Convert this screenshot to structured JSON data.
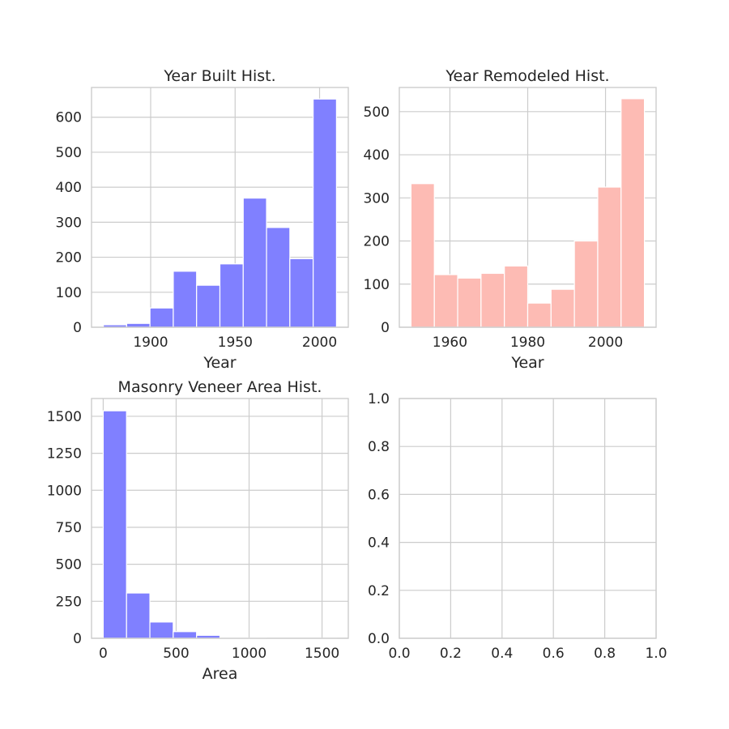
{
  "chart_data": [
    {
      "type": "bar",
      "title": "Year Built Hist.",
      "xlabel": "Year",
      "ylabel": "",
      "color": "#8080ff",
      "bins": [
        {
          "x0": 1872,
          "x1": 1885.8,
          "value": 7
        },
        {
          "x0": 1885.8,
          "x1": 1899.6,
          "value": 11
        },
        {
          "x0": 1899.6,
          "x1": 1913.4,
          "value": 55
        },
        {
          "x0": 1913.4,
          "x1": 1927.2,
          "value": 160
        },
        {
          "x0": 1927.2,
          "x1": 1941.0,
          "value": 120
        },
        {
          "x0": 1941.0,
          "x1": 1954.8,
          "value": 181
        },
        {
          "x0": 1954.8,
          "x1": 1968.6,
          "value": 369
        },
        {
          "x0": 1968.6,
          "x1": 1982.4,
          "value": 285
        },
        {
          "x0": 1982.4,
          "x1": 1996.2,
          "value": 196
        },
        {
          "x0": 1996.2,
          "x1": 2010,
          "value": 652
        }
      ],
      "xlim": [
        1865,
        2017
      ],
      "ylim": [
        0,
        685
      ],
      "xticks": [
        1900,
        1950,
        2000
      ],
      "yticks": [
        0,
        100,
        200,
        300,
        400,
        500,
        600
      ],
      "xtick_labels": [
        "1900",
        "1950",
        "2000"
      ],
      "ytick_labels": [
        "0",
        "100",
        "200",
        "300",
        "400",
        "500",
        "600"
      ]
    },
    {
      "type": "bar",
      "title": "Year Remodeled Hist.",
      "xlabel": "Year",
      "ylabel": "",
      "color": "#fdbbb4",
      "bins": [
        {
          "x0": 1950,
          "x1": 1956,
          "value": 333
        },
        {
          "x0": 1956,
          "x1": 1962,
          "value": 122
        },
        {
          "x0": 1962,
          "x1": 1968,
          "value": 114
        },
        {
          "x0": 1968,
          "x1": 1974,
          "value": 125
        },
        {
          "x0": 1974,
          "x1": 1980,
          "value": 142
        },
        {
          "x0": 1980,
          "x1": 1986,
          "value": 56
        },
        {
          "x0": 1986,
          "x1": 1992,
          "value": 88
        },
        {
          "x0": 1992,
          "x1": 1998,
          "value": 200
        },
        {
          "x0": 1998,
          "x1": 2004,
          "value": 325
        },
        {
          "x0": 2004,
          "x1": 2010,
          "value": 530
        }
      ],
      "xlim": [
        1947,
        2013
      ],
      "ylim": [
        0,
        556
      ],
      "xticks": [
        1960,
        1980,
        2000
      ],
      "yticks": [
        0,
        100,
        200,
        300,
        400,
        500
      ],
      "xtick_labels": [
        "1960",
        "1980",
        "2000"
      ],
      "ytick_labels": [
        "0",
        "100",
        "200",
        "300",
        "400",
        "500"
      ]
    },
    {
      "type": "bar",
      "title": "Masonry Veneer Area Hist.",
      "xlabel": "Area",
      "ylabel": "",
      "color": "#8080ff",
      "bins": [
        {
          "x0": 0,
          "x1": 160,
          "value": 1537
        },
        {
          "x0": 160,
          "x1": 320,
          "value": 306
        },
        {
          "x0": 320,
          "x1": 480,
          "value": 110
        },
        {
          "x0": 480,
          "x1": 640,
          "value": 45
        },
        {
          "x0": 640,
          "x1": 800,
          "value": 20
        },
        {
          "x0": 800,
          "x1": 960,
          "value": 2
        },
        {
          "x0": 960,
          "x1": 1120,
          "value": 2
        },
        {
          "x0": 1120,
          "x1": 1280,
          "value": 1
        },
        {
          "x0": 1280,
          "x1": 1440,
          "value": 1
        },
        {
          "x0": 1440,
          "x1": 1600,
          "value": 1
        }
      ],
      "xlim": [
        -80,
        1680
      ],
      "ylim": [
        0,
        1620
      ],
      "xticks": [
        0,
        500,
        1000,
        1500
      ],
      "yticks": [
        0,
        250,
        500,
        750,
        1000,
        1250,
        1500
      ],
      "xtick_labels": [
        "0",
        "500",
        "1000",
        "1500"
      ],
      "ytick_labels": [
        "0",
        "250",
        "500",
        "750",
        "1000",
        "1250",
        "1500"
      ]
    },
    {
      "type": "bar",
      "title": "",
      "xlabel": "",
      "ylabel": "",
      "color": "#8080ff",
      "bins": [],
      "xlim": [
        0,
        1
      ],
      "ylim": [
        0,
        1
      ],
      "xticks": [
        0.0,
        0.2,
        0.4,
        0.6,
        0.8,
        1.0
      ],
      "yticks": [
        0.0,
        0.2,
        0.4,
        0.6,
        0.8,
        1.0
      ],
      "xtick_labels": [
        "0.0",
        "0.2",
        "0.4",
        "0.6",
        "0.8",
        "1.0"
      ],
      "ytick_labels": [
        "0.0",
        "0.2",
        "0.4",
        "0.6",
        "0.8",
        "1.0"
      ]
    }
  ]
}
